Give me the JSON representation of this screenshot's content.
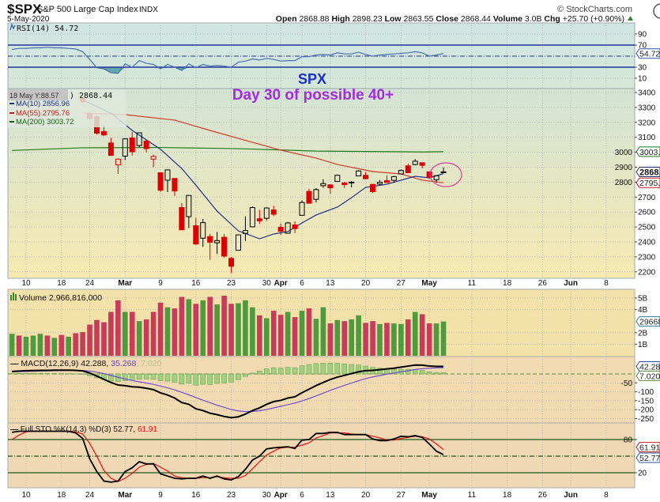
{
  "header": {
    "symbol": "$SPX",
    "name": "S&P 500 Large Cap Index",
    "exchange": "INDX",
    "date": "5-May-2020",
    "copyright": "© StockCharts.com",
    "open_label": "Open",
    "open": "2868.88",
    "high_label": "High",
    "high": "2898.23",
    "low_label": "Low",
    "low": "2863.55",
    "close_label": "Close",
    "close": "2868.44",
    "volume_label": "Volume",
    "volume": "3.0B",
    "chg_label": "Chg",
    "chg": "+25.70 (+0.90%)",
    "chg_icon": "triangle-up-icon"
  },
  "annotations": {
    "title": "SPX",
    "subtitle": "Day 30 of possible 40+",
    "title_color": "#1a2fd0",
    "subtitle_color": "#a32be0",
    "circle_color": "#e0409a",
    "circle_date": "2020-05-05"
  },
  "tooltip": {
    "text": "18 May Y:88.57",
    "price_fragment": ") 2868.44"
  },
  "legends": {
    "rsi": "RSI(14) 54.72",
    "ma10": "MA(10) 2856.96",
    "ma55": "MA(55) 2795.76",
    "ma200": "MA(200) 3003.72",
    "volume": "Volume 2,966,816,000",
    "macd_main": "MACD(12,26,9) 42.288, ",
    "macd_signal": "35.268",
    "macd_hist": ", 7.020",
    "sto_main": "Full STO %K(14,3) %D(3) 52.77, ",
    "sto_d": "61.91"
  },
  "right_tags": {
    "rsi": "54.72",
    "ma200": "3003.7",
    "close": "2868.4",
    "ma55": "2795.7",
    "volume": "29668",
    "macd": "42.288",
    "macd_hist": "7.020",
    "sto_d": "61.91",
    "sto_k": "52.77"
  },
  "colors": {
    "up_volume": "#4e9a3e",
    "down_volume": "#c63c5a",
    "down_candle": "#dd0000",
    "up_candle": "#000000",
    "ma10": "#1f2f8a",
    "ma55": "#d43a2a",
    "ma200": "#1d7a1d",
    "rsi": "#4a6fb0",
    "macd": "#000000",
    "signal": "#6a3fd8",
    "hist": "#9fd07f",
    "sto_k": "#000000",
    "sto_d": "#e81010"
  },
  "chart_data": {
    "type": "candlestick",
    "x_ticks": [
      {
        "date": "2020-02-10",
        "label": "10"
      },
      {
        "date": "2020-02-18",
        "label": "18"
      },
      {
        "date": "2020-02-24",
        "label": "24"
      },
      {
        "date": "2020-03-02",
        "label": "Mar",
        "major": true
      },
      {
        "date": "2020-03-09",
        "label": "9"
      },
      {
        "date": "2020-03-16",
        "label": "16"
      },
      {
        "date": "2020-03-23",
        "label": "23"
      },
      {
        "date": "2020-03-30",
        "label": "30"
      },
      {
        "date": "2020-04-01",
        "label": "Apr",
        "major": true
      },
      {
        "date": "2020-04-06",
        "label": "6"
      },
      {
        "date": "2020-04-13",
        "label": "13"
      },
      {
        "date": "2020-04-20",
        "label": "20"
      },
      {
        "date": "2020-04-27",
        "label": "27"
      },
      {
        "date": "2020-05-01",
        "label": "May",
        "major": true
      },
      {
        "date": "2020-05-11",
        "label": "11"
      },
      {
        "date": "2020-05-18",
        "label": "18"
      },
      {
        "date": "2020-05-26",
        "label": "26"
      },
      {
        "date": "2020-06-01",
        "label": "Jun",
        "major": true
      },
      {
        "date": "2020-06-08",
        "label": "8"
      }
    ],
    "price": {
      "ylim": [
        2200,
        3400
      ],
      "y_ticks": [
        3400,
        3300,
        3200,
        3100,
        3000,
        2900,
        2800,
        2700,
        2600,
        2500,
        2400,
        2300,
        2200
      ],
      "candles_columns": [
        "date",
        "open",
        "high",
        "low",
        "close"
      ],
      "candles": [
        [
          "2020-02-21",
          3360,
          3360,
          3328,
          3338
        ],
        [
          "2020-02-24",
          3257,
          3259,
          3214,
          3226
        ],
        [
          "2020-02-25",
          3238,
          3247,
          3118,
          3128
        ],
        [
          "2020-02-26",
          3139,
          3182,
          3108,
          3116
        ],
        [
          "2020-02-27",
          3062,
          3097,
          2977,
          2979
        ],
        [
          "2020-02-28",
          2916,
          2959,
          2855,
          2954
        ],
        [
          "2020-03-02",
          2974,
          3091,
          2948,
          3090
        ],
        [
          "2020-03-03",
          3096,
          3137,
          2977,
          3003
        ],
        [
          "2020-03-04",
          3045,
          3130,
          3034,
          3130
        ],
        [
          "2020-03-05",
          3075,
          3083,
          2999,
          3024
        ],
        [
          "2020-03-06",
          2954,
          2985,
          2901,
          2972
        ],
        [
          "2020-03-09",
          2863,
          2863,
          2734,
          2746
        ],
        [
          "2020-03-10",
          2813,
          2883,
          2734,
          2882
        ],
        [
          "2020-03-11",
          2825,
          2825,
          2707,
          2741
        ],
        [
          "2020-03-12",
          2630,
          2660,
          2478,
          2481
        ],
        [
          "2020-03-13",
          2569,
          2711,
          2492,
          2711
        ],
        [
          "2020-03-16",
          2508,
          2562,
          2380,
          2386
        ],
        [
          "2020-03-17",
          2425,
          2553,
          2367,
          2529
        ],
        [
          "2020-03-18",
          2436,
          2454,
          2281,
          2398
        ],
        [
          "2020-03-19",
          2394,
          2467,
          2319,
          2409
        ],
        [
          "2020-03-20",
          2431,
          2453,
          2295,
          2305
        ],
        [
          "2020-03-23",
          2290,
          2300,
          2192,
          2237
        ],
        [
          "2020-03-24",
          2344,
          2449,
          2344,
          2447
        ],
        [
          "2020-03-25",
          2457,
          2571,
          2407,
          2476
        ],
        [
          "2020-03-26",
          2501,
          2638,
          2500,
          2630
        ],
        [
          "2020-03-27",
          2555,
          2615,
          2520,
          2541
        ],
        [
          "2020-03-30",
          2558,
          2631,
          2545,
          2627
        ],
        [
          "2020-03-31",
          2614,
          2641,
          2571,
          2585
        ],
        [
          "2020-04-01",
          2498,
          2523,
          2447,
          2471
        ],
        [
          "2020-04-02",
          2458,
          2534,
          2455,
          2527
        ],
        [
          "2020-04-03",
          2514,
          2538,
          2459,
          2489
        ],
        [
          "2020-04-06",
          2578,
          2677,
          2575,
          2664
        ],
        [
          "2020-04-07",
          2738,
          2756,
          2657,
          2659
        ],
        [
          "2020-04-08",
          2685,
          2760,
          2664,
          2750
        ],
        [
          "2020-04-09",
          2776,
          2819,
          2762,
          2790
        ],
        [
          "2020-04-13",
          2782,
          2783,
          2721,
          2762
        ],
        [
          "2020-04-14",
          2805,
          2851,
          2805,
          2846
        ],
        [
          "2020-04-15",
          2795,
          2801,
          2761,
          2783
        ],
        [
          "2020-04-16",
          2800,
          2807,
          2765,
          2800
        ],
        [
          "2020-04-17",
          2842,
          2880,
          2842,
          2875
        ],
        [
          "2020-04-20",
          2846,
          2868,
          2821,
          2823
        ],
        [
          "2020-04-21",
          2785,
          2785,
          2727,
          2737
        ],
        [
          "2020-04-22",
          2787,
          2815,
          2775,
          2799
        ],
        [
          "2020-04-23",
          2810,
          2845,
          2794,
          2798
        ],
        [
          "2020-04-24",
          2812,
          2842,
          2796,
          2837
        ],
        [
          "2020-04-27",
          2855,
          2887,
          2853,
          2878
        ],
        [
          "2020-04-28",
          2909,
          2922,
          2860,
          2863
        ],
        [
          "2020-04-29",
          2918,
          2954,
          2912,
          2940
        ],
        [
          "2020-04-30",
          2930,
          2930,
          2892,
          2912
        ],
        [
          "2020-05-01",
          2869,
          2869,
          2821,
          2831
        ],
        [
          "2020-05-04",
          2816,
          2844,
          2797,
          2843
        ],
        [
          "2020-05-05",
          2868.88,
          2898.23,
          2863.55,
          2868.44
        ]
      ],
      "ma10": [
        [
          "2020-02-21",
          3350
        ],
        [
          "2020-02-27",
          3262
        ],
        [
          "2020-03-03",
          3146
        ],
        [
          "2020-03-09",
          3020
        ],
        [
          "2020-03-12",
          2892
        ],
        [
          "2020-03-16",
          2780
        ],
        [
          "2020-03-19",
          2606
        ],
        [
          "2020-03-24",
          2474
        ],
        [
          "2020-03-27",
          2421
        ],
        [
          "2020-03-31",
          2453
        ],
        [
          "2020-04-02",
          2469
        ],
        [
          "2020-04-06",
          2527
        ],
        [
          "2020-04-08",
          2580
        ],
        [
          "2020-04-14",
          2633
        ],
        [
          "2020-04-16",
          2696
        ],
        [
          "2020-04-20",
          2765
        ],
        [
          "2020-04-23",
          2786
        ],
        [
          "2020-04-27",
          2813
        ],
        [
          "2020-04-29",
          2839
        ],
        [
          "2020-05-01",
          2829
        ],
        [
          "2020-05-05",
          2856.96
        ]
      ],
      "ma55": [
        [
          "2020-02-21",
          3262
        ],
        [
          "2020-03-02",
          3252
        ],
        [
          "2020-03-11",
          3215
        ],
        [
          "2020-03-18",
          3146
        ],
        [
          "2020-03-24",
          3093
        ],
        [
          "2020-04-01",
          3014
        ],
        [
          "2020-04-08",
          2961
        ],
        [
          "2020-04-14",
          2918
        ],
        [
          "2020-04-21",
          2871
        ],
        [
          "2020-04-27",
          2855
        ],
        [
          "2020-04-30",
          2813
        ],
        [
          "2020-05-05",
          2795.76
        ]
      ],
      "ma200": [
        [
          "2020-02-06",
          3012
        ],
        [
          "2020-02-21",
          3030
        ],
        [
          "2020-03-09",
          3032
        ],
        [
          "2020-03-24",
          3024
        ],
        [
          "2020-04-08",
          3008
        ],
        [
          "2020-04-30",
          3002
        ],
        [
          "2020-05-05",
          3003.72
        ]
      ]
    },
    "x": [
      "2020-02-06",
      "2020-02-07",
      "2020-02-10",
      "2020-02-11",
      "2020-02-12",
      "2020-02-13",
      "2020-02-14",
      "2020-02-18",
      "2020-02-19",
      "2020-02-20",
      "2020-02-21",
      "2020-02-24",
      "2020-02-25",
      "2020-02-26",
      "2020-02-27",
      "2020-02-28",
      "2020-03-02",
      "2020-03-03",
      "2020-03-04",
      "2020-03-05",
      "2020-03-06",
      "2020-03-09",
      "2020-03-10",
      "2020-03-11",
      "2020-03-12",
      "2020-03-13",
      "2020-03-16",
      "2020-03-17",
      "2020-03-18",
      "2020-03-19",
      "2020-03-20",
      "2020-03-23",
      "2020-03-24",
      "2020-03-25",
      "2020-03-26",
      "2020-03-27",
      "2020-03-30",
      "2020-03-31",
      "2020-04-01",
      "2020-04-02",
      "2020-04-03",
      "2020-04-06",
      "2020-04-07",
      "2020-04-08",
      "2020-04-09",
      "2020-04-13",
      "2020-04-14",
      "2020-04-15",
      "2020-04-16",
      "2020-04-17",
      "2020-04-20",
      "2020-04-21",
      "2020-04-22",
      "2020-04-23",
      "2020-04-24",
      "2020-04-27",
      "2020-04-28",
      "2020-04-29",
      "2020-04-30",
      "2020-05-01",
      "2020-05-04",
      "2020-05-05"
    ],
    "rsi": {
      "ylim": [
        0,
        100
      ],
      "y_ticks": [
        90,
        70,
        30,
        10
      ],
      "levels": [
        70,
        50,
        30
      ],
      "values": [
        62,
        64,
        64,
        65,
        65,
        66,
        65,
        65,
        64,
        63,
        58,
        44,
        29,
        27,
        20,
        19,
        36,
        30,
        42,
        37,
        35,
        27,
        35,
        30,
        24,
        36,
        29,
        35,
        32,
        33,
        32,
        30,
        39,
        41,
        45,
        43,
        46,
        44,
        41,
        42,
        42,
        49,
        49,
        52,
        53,
        52,
        56,
        54,
        54,
        57,
        53,
        50,
        52,
        53,
        54,
        55,
        56,
        58,
        56,
        50,
        52,
        54.72
      ]
    },
    "volume": {
      "unit": "B",
      "y_ticks": [
        5,
        4,
        2,
        1
      ],
      "ylim": [
        0,
        5.1
      ],
      "values": [
        1.9,
        1.75,
        1.65,
        1.75,
        1.9,
        1.75,
        1.55,
        1.8,
        1.65,
        1.95,
        2.05,
        2.7,
        3.1,
        2.9,
        3.8,
        4.8,
        3.8,
        3.8,
        3.0,
        3.15,
        3.8,
        4.6,
        4.2,
        4.1,
        5.1,
        4.9,
        4.5,
        4.8,
        5.1,
        4.45,
        5.2,
        4.5,
        4.55,
        4.8,
        4.2,
        3.5,
        3.25,
        3.9,
        3.55,
        3.8,
        3.35,
        3.9,
        4.1,
        3.2,
        4.2,
        2.8,
        3.1,
        3.0,
        3.15,
        3.5,
        2.85,
        3.0,
        2.75,
        2.85,
        2.8,
        2.75,
        3.15,
        3.8,
        3.6,
        2.8,
        2.8,
        2.97
      ],
      "up": [
        1,
        0,
        1,
        1,
        1,
        0,
        1,
        0,
        1,
        0,
        0,
        0,
        0,
        0,
        0,
        0,
        1,
        0,
        1,
        0,
        0,
        0,
        1,
        0,
        0,
        1,
        0,
        1,
        0,
        1,
        0,
        0,
        1,
        1,
        1,
        0,
        1,
        0,
        0,
        1,
        0,
        1,
        0,
        1,
        1,
        0,
        1,
        0,
        1,
        1,
        0,
        0,
        1,
        0,
        1,
        1,
        0,
        1,
        0,
        0,
        1,
        1
      ]
    },
    "macd": {
      "y_ticks": [
        -50,
        -100,
        -150,
        -200,
        -250
      ],
      "macd": [
        14,
        16,
        18,
        19,
        20,
        20,
        21,
        21,
        21,
        20,
        17,
        5,
        -12,
        -30,
        -48,
        -62,
        -66,
        -72,
        -74,
        -80,
        -88,
        -106,
        -118,
        -135,
        -160,
        -170,
        -195,
        -205,
        -220,
        -228,
        -238,
        -245,
        -240,
        -225,
        -205,
        -190,
        -170,
        -155,
        -148,
        -135,
        -128,
        -105,
        -85,
        -65,
        -48,
        -31,
        -18,
        -8,
        2,
        12,
        18,
        20,
        24,
        28,
        32,
        38,
        44,
        50,
        49,
        44,
        42,
        42.288
      ],
      "signal": [
        12,
        13,
        14,
        15,
        16,
        17,
        18,
        19,
        19.5,
        19.6,
        19,
        16,
        10,
        2,
        -8,
        -19,
        -28,
        -37,
        -44,
        -51,
        -58,
        -68,
        -78,
        -89,
        -103,
        -117,
        -132,
        -147,
        -161,
        -175,
        -187,
        -199,
        -207,
        -211,
        -210,
        -206,
        -199,
        -190,
        -181,
        -172,
        -163,
        -151,
        -138,
        -123,
        -108,
        -92,
        -78,
        -64,
        -51,
        -38,
        -26,
        -17,
        -9,
        -1,
        5,
        12,
        18,
        25,
        29,
        32,
        34,
        35.268
      ]
    },
    "stochastic": {
      "ylim": [
        0,
        100
      ],
      "y_ticks": [
        80,
        20
      ],
      "levels": [
        80,
        50,
        20
      ],
      "k": [
        93,
        95,
        95,
        95,
        95,
        95,
        95,
        95,
        95,
        92,
        82,
        45,
        22,
        5,
        3,
        5,
        22,
        29,
        40,
        36,
        36,
        18,
        14,
        10,
        9,
        10,
        10,
        14,
        10,
        14,
        9,
        7,
        13,
        26,
        43,
        50,
        63,
        65,
        66,
        67,
        64,
        79,
        80,
        91,
        91,
        93,
        93,
        89,
        89,
        89,
        89,
        81,
        78,
        78,
        81,
        86,
        85,
        87,
        84,
        72,
        59,
        52.77
      ],
      "d": [
        80,
        88,
        94,
        95,
        95,
        95,
        95,
        95,
        95,
        94,
        90,
        73,
        50,
        24,
        10,
        4,
        10,
        19,
        30,
        35,
        37,
        30,
        23,
        14,
        11,
        10,
        10,
        11,
        11,
        13,
        11,
        10,
        10,
        15,
        27,
        40,
        52,
        59,
        65,
        66,
        66,
        70,
        74,
        83,
        87,
        92,
        92,
        92,
        90,
        89,
        89,
        86,
        83,
        79,
        79,
        82,
        84,
        86,
        85,
        81,
        72,
        61.91
      ]
    }
  }
}
